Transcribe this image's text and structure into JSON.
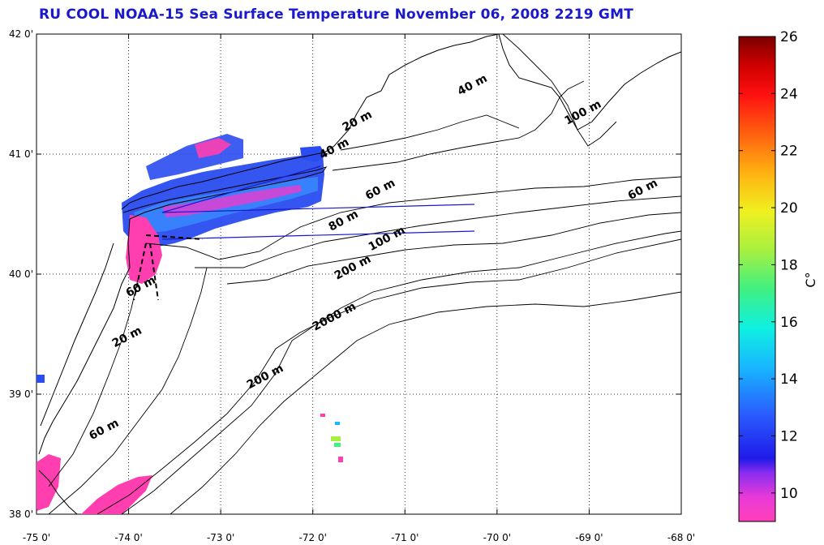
{
  "title": "RU COOL  NOAA-15 Sea Surface Temperature November 06, 2008 2219 GMT",
  "map": {
    "lat_range": [
      38,
      42
    ],
    "lon_range": [
      -75,
      -68
    ],
    "lat_ticks": [
      "38 0'",
      "39 0'",
      "40 0'",
      "41 0'",
      "42 0'"
    ],
    "lon_ticks": [
      "-75 0'",
      "-74 0'",
      "-73 0'",
      "-72 0'",
      "-71 0'",
      "-70 0'",
      "-69 0'",
      "-68 0'"
    ],
    "grid": "dotted",
    "isobath_labels": [
      {
        "text": "20 m",
        "lon": -71.5,
        "lat": 41.25
      },
      {
        "text": "40 m",
        "lon": -71.75,
        "lat": 41.02
      },
      {
        "text": "40 m",
        "lon": -70.25,
        "lat": 41.55
      },
      {
        "text": "100 m",
        "lon": -69.05,
        "lat": 41.32
      },
      {
        "text": "60 m",
        "lon": -71.25,
        "lat": 40.68
      },
      {
        "text": "60 m",
        "lon": -68.4,
        "lat": 40.68
      },
      {
        "text": "80 m",
        "lon": -71.65,
        "lat": 40.42
      },
      {
        "text": "100 m",
        "lon": -71.18,
        "lat": 40.27
      },
      {
        "text": "200 m",
        "lon": -71.55,
        "lat": 40.03
      },
      {
        "text": "2000 m",
        "lon": -71.75,
        "lat": 39.62
      },
      {
        "text": "60 m",
        "lon": -73.85,
        "lat": 39.87
      },
      {
        "text": "20 m",
        "lon": -74.0,
        "lat": 39.45
      },
      {
        "text": "200 m",
        "lon": -72.5,
        "lat": 39.12
      },
      {
        "text": "60 m",
        "lon": -74.25,
        "lat": 38.68
      }
    ]
  },
  "colorbar": {
    "min": 9,
    "max": 26,
    "ticks": [
      "10",
      "12",
      "14",
      "16",
      "18",
      "20",
      "22",
      "24",
      "26"
    ],
    "unit_label": "C°"
  },
  "colors": {
    "title": "#1a1acc",
    "sst_cool": "#ff3fb0",
    "sst_blue": "#2a4cf0",
    "sst_light_blue": "#3a8cff"
  }
}
